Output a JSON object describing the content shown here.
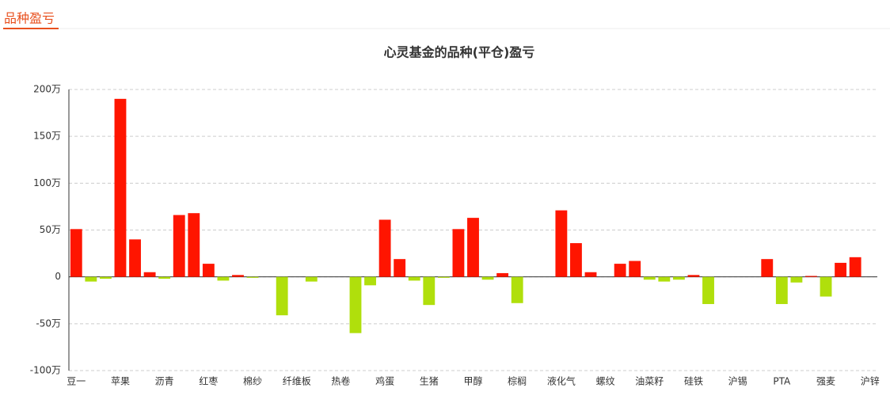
{
  "header": {
    "title": "品种盈亏"
  },
  "chart_data": {
    "type": "bar",
    "title": "心灵基金的品种(平仓)盈亏",
    "categories": [
      "豆一",
      null,
      null,
      "苹果",
      null,
      null,
      "沥青",
      null,
      null,
      "红枣",
      null,
      null,
      "棉纱",
      null,
      null,
      "纤维板",
      null,
      null,
      "热卷",
      null,
      null,
      "鸡蛋",
      null,
      null,
      "生猪",
      null,
      null,
      "甲醇",
      null,
      null,
      "棕榈",
      null,
      null,
      "液化气",
      null,
      null,
      "螺纹",
      null,
      null,
      "油菜籽",
      null,
      null,
      "硅铁",
      null,
      null,
      "沪锡",
      null,
      null,
      "PTA",
      null,
      null,
      "强麦",
      null,
      null,
      "沪锌"
    ],
    "values": [
      51,
      -5,
      -2,
      190,
      40,
      5,
      -2,
      66,
      68,
      14,
      -4,
      2,
      -1,
      0,
      -41,
      0,
      -5,
      0,
      0,
      -60,
      -9,
      61,
      19,
      -4,
      -30,
      -1,
      51,
      63,
      -3,
      4,
      -28,
      0,
      0,
      71,
      36,
      5,
      0,
      14,
      17,
      -3,
      -5,
      -3,
      2,
      -29,
      0,
      0,
      0,
      19,
      -29,
      -6,
      1,
      -21,
      15,
      21,
      0
    ],
    "color_positive": "#ff1500",
    "color_negative": "#b0df0c",
    "ylim": [
      -100,
      200
    ],
    "yticks": [
      {
        "value": -100,
        "label": "-100万"
      },
      {
        "value": -50,
        "label": "-50万"
      },
      {
        "value": 0,
        "label": "0"
      },
      {
        "value": 50,
        "label": "50万"
      },
      {
        "value": 100,
        "label": "100万"
      },
      {
        "value": 150,
        "label": "150万"
      },
      {
        "value": 200,
        "label": "200万"
      }
    ],
    "grid": true
  }
}
